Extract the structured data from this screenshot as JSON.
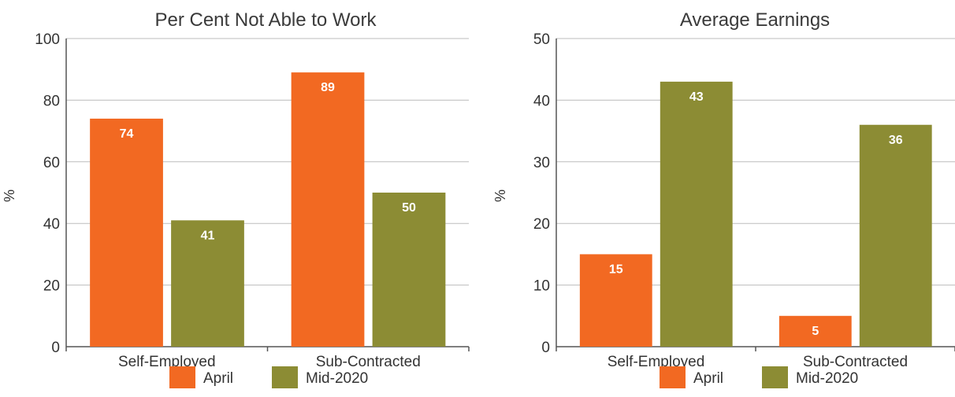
{
  "colors": {
    "april": "#f26922",
    "mid2020": "#8c8c34"
  },
  "legend": [
    {
      "name": "April",
      "color": "#f26922"
    },
    {
      "name": "Mid-2020",
      "color": "#8c8c34"
    }
  ],
  "chart_data": [
    {
      "type": "bar",
      "title": "Per Cent Not Able to Work",
      "ylabel": "%",
      "xlabel": "",
      "ylim": [
        0,
        100
      ],
      "yticks": [
        0,
        20,
        40,
        60,
        80,
        100
      ],
      "categories": [
        "Self-Employed",
        "Sub-Contracted"
      ],
      "series": [
        {
          "name": "April",
          "values": [
            74,
            89
          ]
        },
        {
          "name": "Mid-2020",
          "values": [
            41,
            50
          ]
        }
      ],
      "grid": true,
      "legend_position": "bottom"
    },
    {
      "type": "bar",
      "title": "Average Earnings",
      "ylabel": "%",
      "xlabel": "",
      "ylim": [
        0,
        50
      ],
      "yticks": [
        0,
        10,
        20,
        30,
        40,
        50
      ],
      "categories": [
        "Self-Employed",
        "Sub-Contracted"
      ],
      "series": [
        {
          "name": "April",
          "values": [
            15,
            5
          ]
        },
        {
          "name": "Mid-2020",
          "values": [
            43,
            36
          ]
        }
      ],
      "grid": true,
      "legend_position": "bottom"
    }
  ]
}
